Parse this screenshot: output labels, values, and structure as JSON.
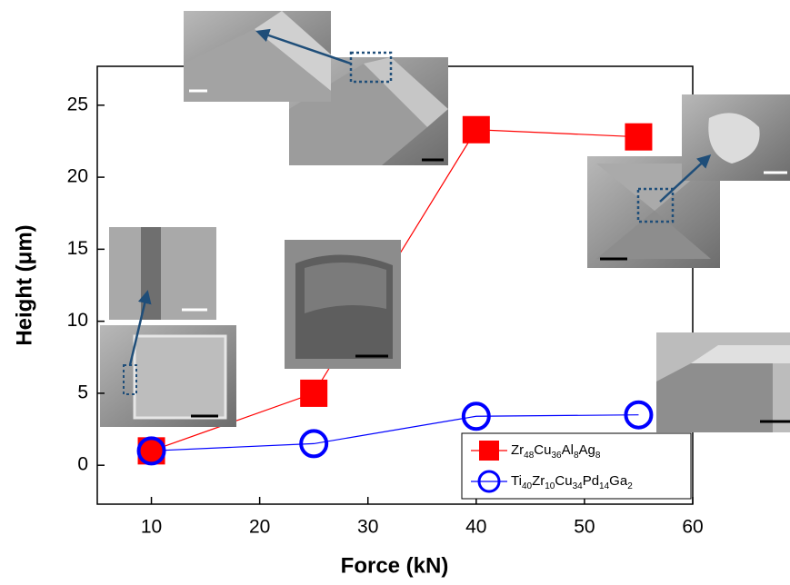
{
  "chart_data": {
    "type": "line",
    "x_label": "Force (kN)",
    "y_label": "Height (μm)",
    "x": [
      10,
      25,
      40,
      55
    ],
    "series": [
      {
        "name": "Zr48Cu36Al8Ag8",
        "color": "#ff0000",
        "marker": "square",
        "values": [
          1,
          5,
          23.3,
          22.8
        ]
      },
      {
        "name": "Ti40Zr10Cu34Pd14Ga2",
        "color": "#0000ff",
        "marker": "circle",
        "values": [
          1,
          1.5,
          3.4,
          3.5
        ]
      }
    ],
    "xlim": [
      5,
      60
    ],
    "xticks": [
      10,
      20,
      30,
      40,
      50,
      60
    ],
    "ylim": [
      -2.7,
      27.7
    ],
    "yticks": [
      0,
      5,
      10,
      15,
      20,
      25
    ],
    "legend": "lower right"
  }
}
